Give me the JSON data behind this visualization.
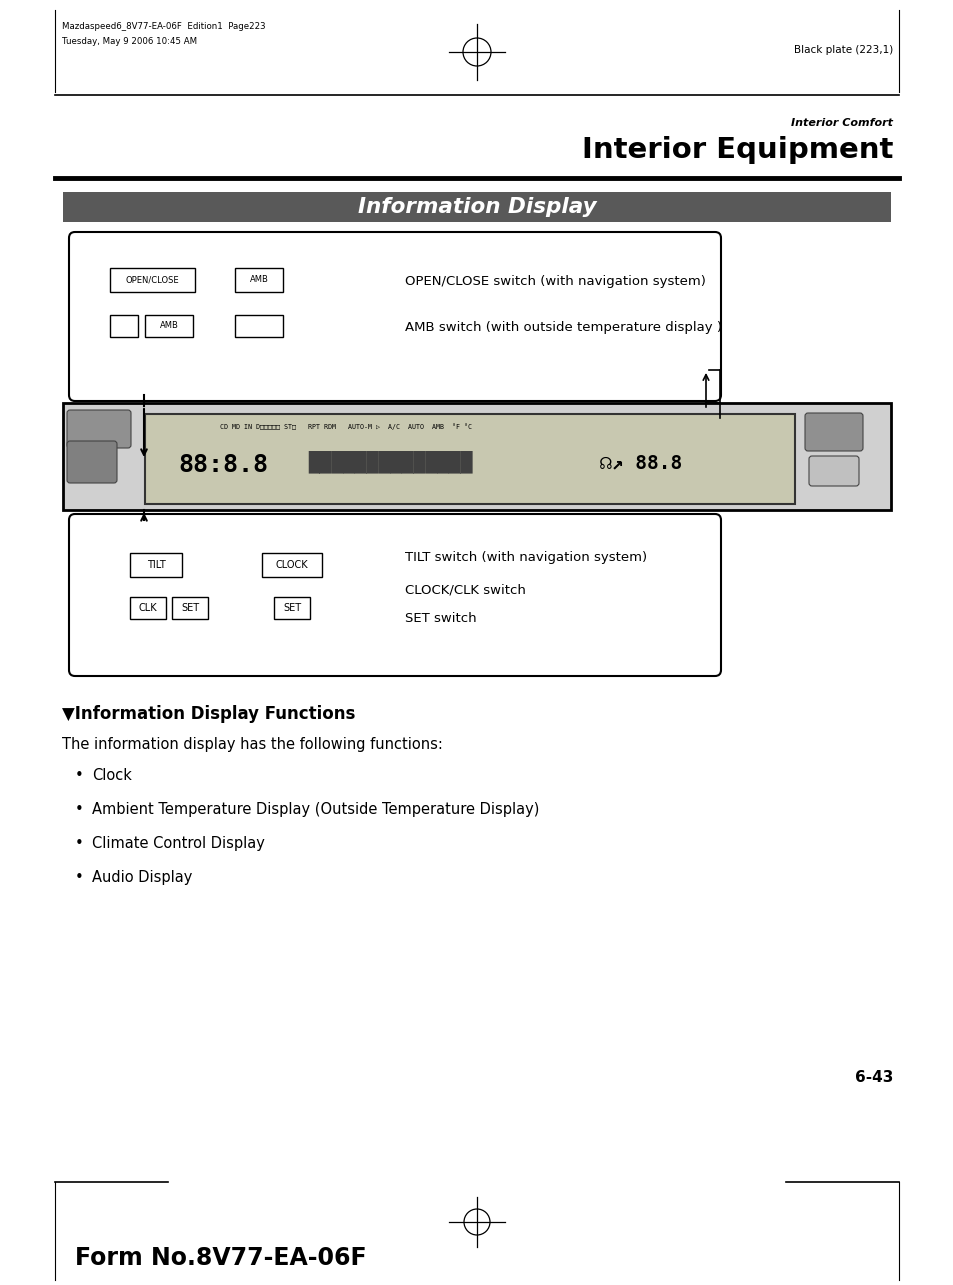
{
  "bg_color": "#ffffff",
  "page_width": 9.54,
  "page_height": 12.85,
  "header_meta_line1": "Mazdaspeed6_8V77-EA-06F  Edition1  Page223",
  "header_meta_line2": "Tuesday, May 9 2006 10:45 AM",
  "header_right": "Black plate (223,1)",
  "section_label": "Interior Comfort",
  "section_title": "Interior Equipment",
  "info_display_banner": "Information Display",
  "info_display_banner_bg": "#595959",
  "info_display_banner_fg": "#ffffff",
  "top_box_text1": "OPEN/CLOSE switch (with navigation system)",
  "top_box_text2": "AMB switch (with outside temperature display )",
  "btn_open_close": "OPEN/CLOSE",
  "btn_amb_top": "AMB",
  "btn_amb_bot": "AMB",
  "bottom_box_text1": "TILT switch (with navigation system)",
  "bottom_box_text2": "CLOCK/CLK switch",
  "bottom_box_text3": "SET switch",
  "btn_tilt": "TILT",
  "btn_clk": "CLK",
  "btn_set_left": "SET",
  "btn_clock": "CLOCK",
  "btn_set_right": "SET",
  "section2_title": "▼Information Display Functions",
  "section2_body": "The information display has the following functions:",
  "bullet_items": [
    "Clock",
    "Ambient Temperature Display (Outside Temperature Display)",
    "Climate Control Display",
    "Audio Display"
  ],
  "page_number": "6-43",
  "footer_text": "Form No.8V77-EA-06F"
}
